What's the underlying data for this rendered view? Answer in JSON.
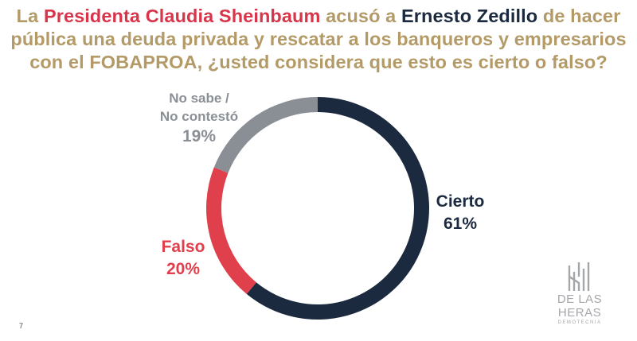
{
  "title": {
    "part1": "La ",
    "part2": "Presidenta Claudia Sheinbaum",
    "part3": " acusó a ",
    "part4": "Ernesto Zedillo",
    "part5": " de hacer pública una deuda privada y rescatar a los banqueros y empresarios con el FOBAPROA, ¿usted considera que esto es cierto o falso?"
  },
  "chart_data": {
    "type": "pie",
    "donut": true,
    "slices": [
      {
        "label": "Cierto",
        "value": 61,
        "value_label": "61%",
        "color": "#1b2a3e"
      },
      {
        "label": "Falso",
        "value": 20,
        "value_label": "20%",
        "color": "#e0404c"
      },
      {
        "label_line1": "No sabe /",
        "label_line2": "No contestó",
        "value": 19,
        "value_label": "19%",
        "color": "#8a8f96"
      }
    ]
  },
  "logo": {
    "name": "DE LAS HERAS",
    "sub": "DEMOTECNIA"
  },
  "page_number": "7"
}
